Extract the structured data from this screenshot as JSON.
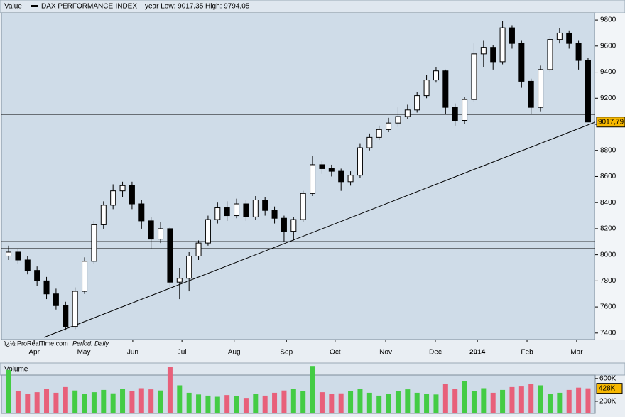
{
  "chart_data": {
    "type": "candlestick",
    "header": {
      "field": "Value",
      "name": "DAX PERFORMANCE-INDEX",
      "range": "year Low: 9017,35 High: 9794,05"
    },
    "source": "ï¿½ ProRealTime.com",
    "period": "Period: Daily",
    "x": [
      3,
      7,
      11,
      15,
      19,
      23,
      27,
      31,
      35,
      39,
      43,
      47,
      51,
      55,
      59,
      63,
      67,
      71,
      75,
      79,
      83,
      87,
      91,
      95,
      99,
      103,
      107,
      111,
      115,
      119,
      123,
      127,
      131,
      135,
      139,
      143,
      147,
      151,
      155,
      159,
      163,
      167,
      171,
      175,
      179,
      183,
      187,
      191,
      195,
      199,
      203,
      207,
      211,
      215,
      219,
      223,
      227,
      231,
      235,
      239,
      243,
      247
    ],
    "open": [
      7990,
      8020,
      7960,
      7880,
      7800,
      7700,
      7610,
      7450,
      7720,
      7950,
      8230,
      8380,
      8490,
      8530,
      8390,
      8260,
      8120,
      8200,
      7790,
      7820,
      7990,
      8090,
      8270,
      8360,
      8300,
      8390,
      8290,
      8420,
      8340,
      8280,
      8180,
      8270,
      8470,
      8690,
      8660,
      8640,
      8560,
      8610,
      8820,
      8900,
      8960,
      9010,
      9060,
      9110,
      9220,
      9340,
      9410,
      9130,
      9030,
      9190,
      9540,
      9590,
      9480,
      9740,
      9620,
      9330,
      9130,
      9420,
      9650,
      9700,
      9620,
      9490
    ],
    "high": [
      8070,
      8050,
      7990,
      7910,
      7830,
      7740,
      7640,
      7750,
      7980,
      8260,
      8410,
      8540,
      8560,
      8560,
      8420,
      8290,
      8250,
      8210,
      7900,
      8020,
      8110,
      8300,
      8400,
      8410,
      8430,
      8420,
      8450,
      8440,
      8370,
      8300,
      8290,
      8490,
      8760,
      8720,
      8690,
      8660,
      8640,
      8850,
      8930,
      8990,
      9050,
      9130,
      9150,
      9250,
      9380,
      9440,
      9420,
      9160,
      9210,
      9620,
      9640,
      9610,
      9794,
      9760,
      9640,
      9350,
      9450,
      9680,
      9740,
      9720,
      9640,
      9510
    ],
    "low": [
      7960,
      7930,
      7850,
      7760,
      7660,
      7580,
      7420,
      7430,
      7700,
      7930,
      8200,
      8350,
      8440,
      8350,
      8200,
      8050,
      8090,
      7740,
      7660,
      7720,
      7960,
      8070,
      8240,
      8260,
      8280,
      8260,
      8270,
      8300,
      8240,
      8100,
      8110,
      8250,
      8450,
      8620,
      8600,
      8490,
      8530,
      8590,
      8800,
      8880,
      8940,
      8980,
      9040,
      9090,
      9200,
      9320,
      9080,
      8990,
      9000,
      9170,
      9440,
      9420,
      9460,
      9580,
      9280,
      9080,
      9100,
      9400,
      9620,
      9580,
      9420,
      9017.35
    ],
    "close": [
      8020,
      7960,
      7880,
      7800,
      7700,
      7610,
      7450,
      7720,
      7950,
      8230,
      8380,
      8490,
      8530,
      8390,
      8260,
      8120,
      8200,
      7790,
      7820,
      7990,
      8090,
      8270,
      8360,
      8300,
      8390,
      8290,
      8420,
      8340,
      8280,
      8180,
      8270,
      8470,
      8690,
      8660,
      8640,
      8560,
      8610,
      8820,
      8900,
      8960,
      9010,
      9060,
      9110,
      9220,
      9340,
      9410,
      9130,
      9030,
      9190,
      9540,
      9590,
      9480,
      9740,
      9620,
      9330,
      9130,
      9420,
      9650,
      9700,
      9620,
      9490,
      9017.79
    ],
    "up_color": "#ffffff",
    "down_color": "#000000",
    "xlim": [
      0,
      250
    ],
    "xticks": [
      {
        "value": 13.8,
        "label": "Apr"
      },
      {
        "value": 34.7,
        "label": "May"
      },
      {
        "value": 55.3,
        "label": "Jun"
      },
      {
        "value": 76,
        "label": "Jul"
      },
      {
        "value": 98,
        "label": "Aug"
      },
      {
        "value": 120,
        "label": "Sep"
      },
      {
        "value": 140.5,
        "label": "Oct"
      },
      {
        "value": 161.8,
        "label": "Nov"
      },
      {
        "value": 182.7,
        "label": "Dec"
      },
      {
        "value": 200.4,
        "label": "2014"
      },
      {
        "value": 221.3,
        "label": "Feb"
      },
      {
        "value": 242.2,
        "label": "Mar"
      }
    ],
    "ylim": [
      7350,
      9855
    ],
    "yticks": [
      7400,
      7600,
      7800,
      8000,
      8200,
      8400,
      8600,
      8800,
      9000,
      9200,
      9400,
      9600,
      9800
    ],
    "hlines": [
      9076,
      8101,
      8047
    ],
    "trendline": {
      "x": [
        18,
        250
      ],
      "y": [
        7367,
        9017
      ]
    },
    "last_value": {
      "value": 9017.79,
      "label": "9017,79"
    },
    "volume": {
      "title": "Volume",
      "values": [
        750000,
        380000,
        330000,
        360000,
        420000,
        350000,
        450000,
        390000,
        330000,
        360000,
        400000,
        340000,
        420000,
        380000,
        430000,
        410000,
        390000,
        800000,
        480000,
        350000,
        320000,
        300000,
        280000,
        310000,
        290000,
        260000,
        330000,
        300000,
        350000,
        390000,
        420000,
        380000,
        820000,
        360000,
        330000,
        340000,
        380000,
        420000,
        350000,
        300000,
        330000,
        380000,
        410000,
        350000,
        330000,
        320000,
        500000,
        420000,
        560000,
        380000,
        430000,
        350000,
        400000,
        450000,
        460000,
        500000,
        480000,
        330000,
        350000,
        400000,
        440000,
        428000
      ],
      "up_color": "#44cc44",
      "down_color": "#e8607a",
      "ylim": [
        0,
        860000
      ],
      "yticks": [
        {
          "value": 200000,
          "label": "200K"
        },
        {
          "value": 600000,
          "label": "600K"
        }
      ],
      "last_value": {
        "value": 428000,
        "label": "428K"
      }
    }
  }
}
